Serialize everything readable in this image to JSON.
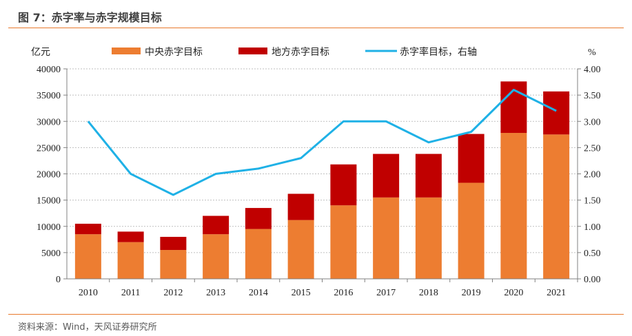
{
  "figure": {
    "title": "图 7：赤字率与赤字规模目标",
    "source": "资料来源：Wind，天风证券研究所"
  },
  "colors": {
    "central": "#ed7d31",
    "local": "#c00000",
    "rate": "#1fb1e6",
    "rule": "#e8792b"
  },
  "chart_data": {
    "type": "bar",
    "stacked": true,
    "title": "赤字率与赤字规模目标",
    "categories": [
      "2010",
      "2011",
      "2012",
      "2013",
      "2014",
      "2015",
      "2016",
      "2017",
      "2018",
      "2019",
      "2020",
      "2021"
    ],
    "series": [
      {
        "name": "中央赤字目标",
        "type": "bar",
        "axis": "left",
        "values": [
          8500,
          7000,
          5500,
          8500,
          9500,
          11200,
          14000,
          15500,
          15500,
          18300,
          27800,
          27500
        ]
      },
      {
        "name": "地方赤字目标",
        "type": "bar",
        "axis": "left",
        "values": [
          2000,
          2000,
          2500,
          3500,
          4000,
          5000,
          7800,
          8300,
          8300,
          9300,
          9800,
          8200
        ]
      },
      {
        "name": "赤字率目标，右轴",
        "type": "line",
        "axis": "right",
        "values": [
          3.0,
          2.0,
          1.6,
          2.0,
          2.1,
          2.3,
          3.0,
          3.0,
          2.6,
          2.8,
          3.6,
          3.2
        ]
      }
    ],
    "ylabel_left": "亿元",
    "ylabel_right": "%",
    "ylim_left": [
      0,
      40000
    ],
    "ylim_right": [
      0,
      4.0
    ],
    "yticks_left": [
      "0",
      "5000",
      "10000",
      "15000",
      "20000",
      "25000",
      "30000",
      "35000",
      "40000"
    ],
    "yticks_right": [
      "0.00",
      "0.50",
      "1.00",
      "1.50",
      "2.00",
      "2.50",
      "3.00",
      "3.50",
      "4.00"
    ],
    "grid": true,
    "legend_position": "top"
  }
}
